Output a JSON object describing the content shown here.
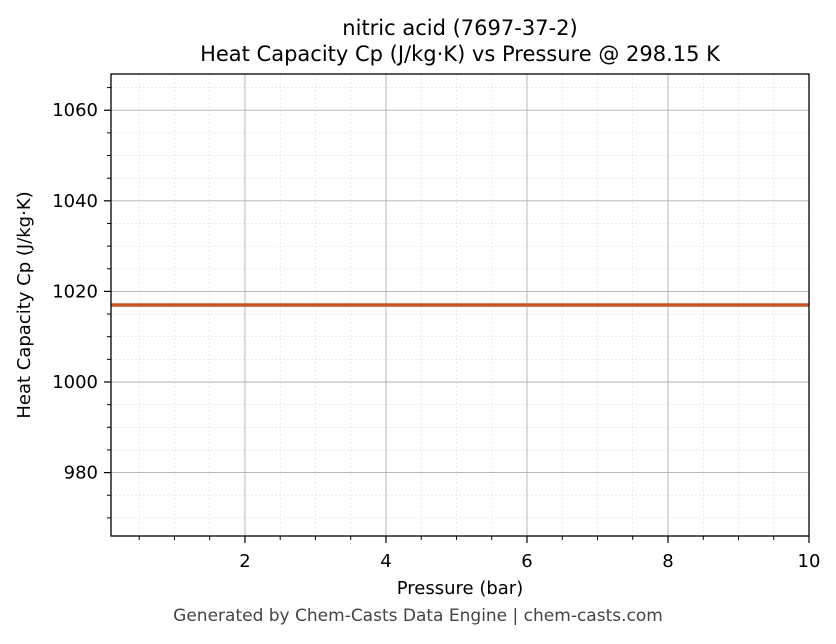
{
  "chart_data": {
    "type": "line",
    "title": "nitric acid (7697-37-2)",
    "subtitle": "Heat Capacity Cp (J/kg·K) vs Pressure @ 298.15 K",
    "xlabel": "Pressure (bar)",
    "ylabel": "Heat Capacity Cp (J/kg·K)",
    "xlim": [
      0.1,
      10
    ],
    "ylim": [
      966,
      1068
    ],
    "x_ticks": [
      2,
      4,
      6,
      8,
      10
    ],
    "y_ticks": [
      980,
      1000,
      1020,
      1040,
      1060
    ],
    "x_tick_labels": [
      "2",
      "4",
      "6",
      "8",
      "10"
    ],
    "y_tick_labels": [
      "980",
      "1000",
      "1020",
      "1040",
      "1060"
    ],
    "grid": true,
    "minor_grid": true,
    "legend": "none",
    "series": [
      {
        "color": "#c8552a",
        "x": [
          0.1,
          10
        ],
        "y": [
          1017,
          1017
        ]
      }
    ]
  },
  "footer": "Generated by Chem-Casts Data Engine | chem-casts.com"
}
